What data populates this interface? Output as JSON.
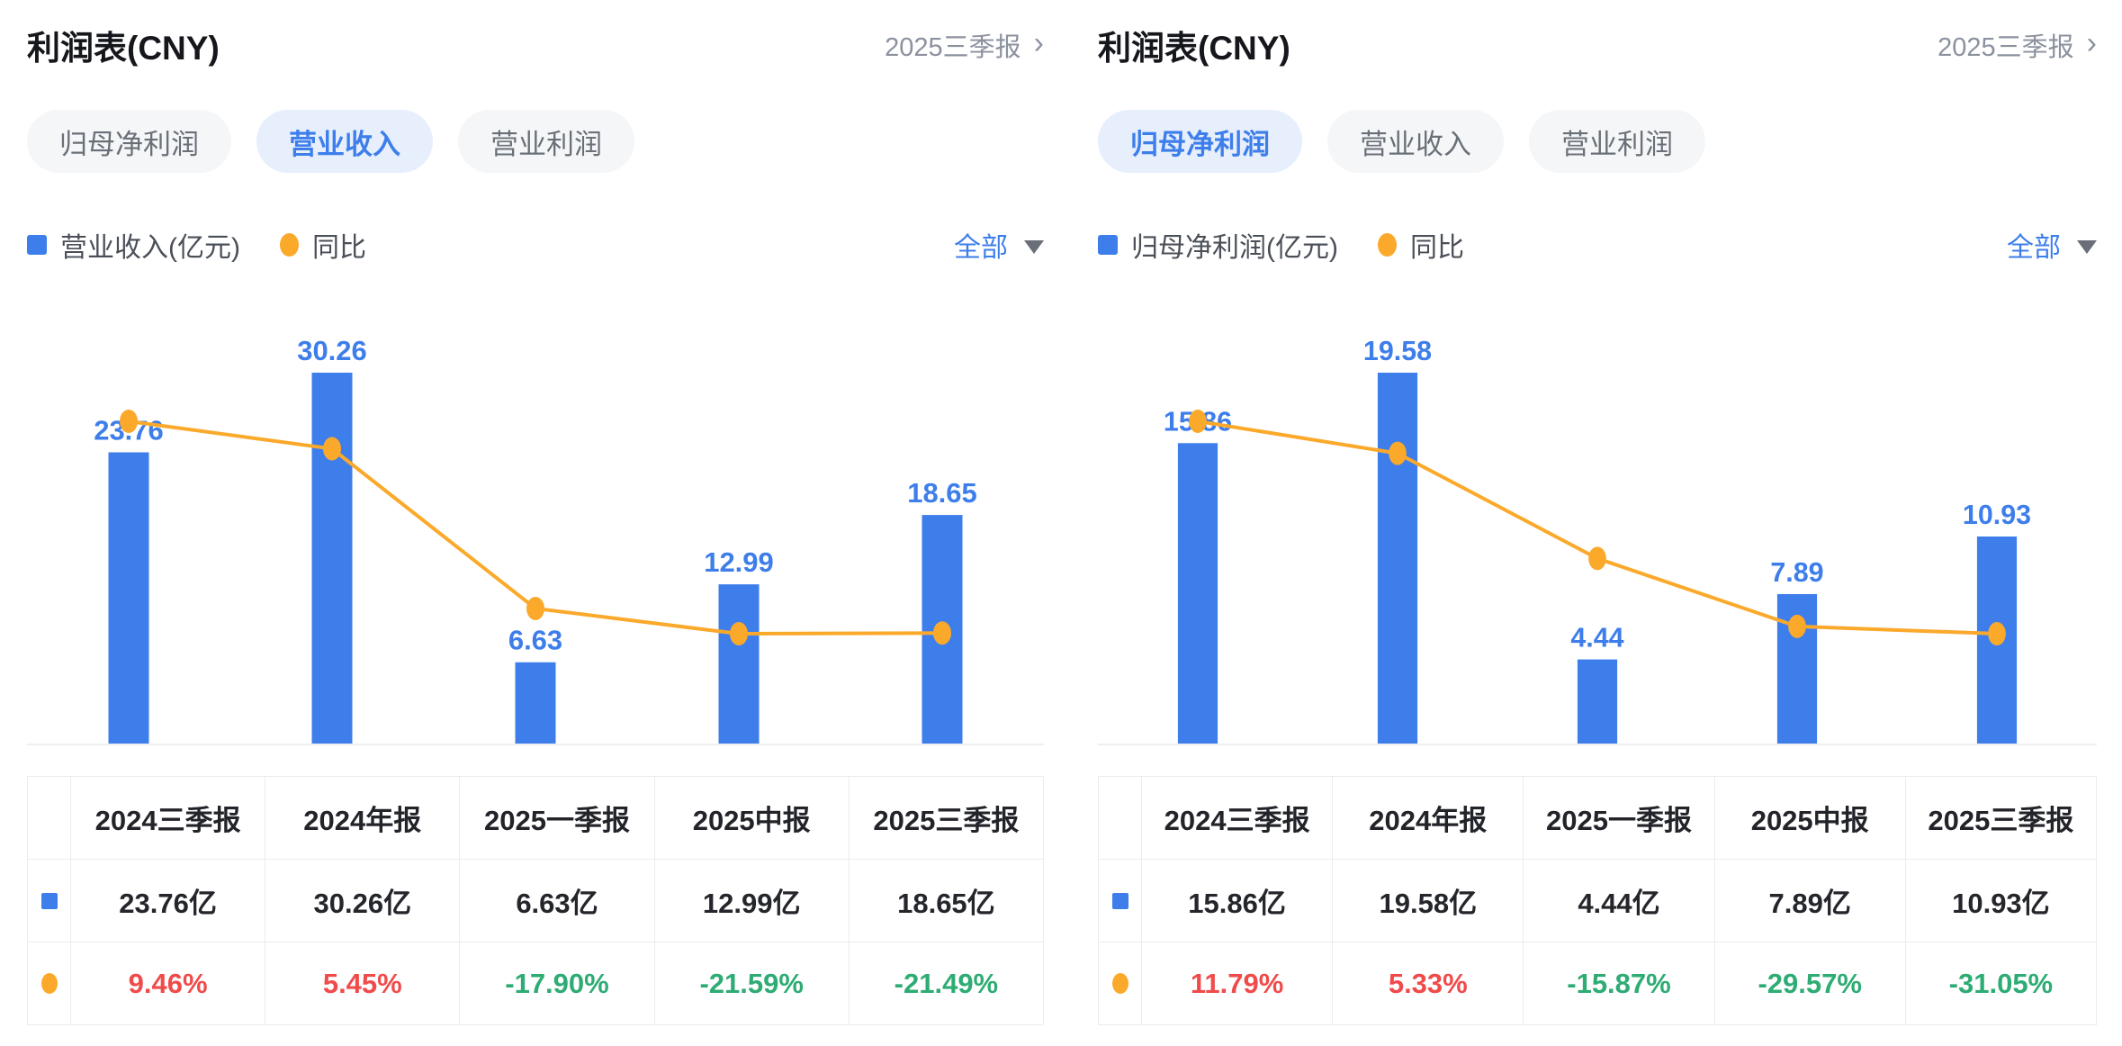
{
  "colors": {
    "bar_blue": "#3d7eeb",
    "line_orange": "#fba92b",
    "positive_red": "#f04b4b",
    "negative_green": "#2eac74",
    "link_blue": "#3d7eeb",
    "muted_gray": "#8b919e",
    "baseline_gray": "#eeeff1"
  },
  "panels": [
    {
      "title": "利润表(CNY)",
      "report_link": {
        "label": "2025三季报",
        "chevron": "›"
      },
      "tabs": [
        {
          "label": "归母净利润",
          "selected": false
        },
        {
          "label": "营业收入",
          "selected": true
        },
        {
          "label": "营业利润",
          "selected": false
        }
      ],
      "legend": {
        "bar_label": "营业收入(亿元)",
        "line_label": "同比"
      },
      "range_dropdown": {
        "label": "全部"
      },
      "table": {
        "headers": [
          "2024三季报",
          "2024年报",
          "2025一季报",
          "2025中报",
          "2025三季报"
        ],
        "rows": [
          {
            "icon": "bar-series-icon",
            "cells": [
              "23.76亿",
              "30.26亿",
              "6.63亿",
              "12.99亿",
              "18.65亿"
            ]
          },
          {
            "icon": "line-series-icon",
            "cells": [
              "9.46%",
              "5.45%",
              "-17.90%",
              "-21.59%",
              "-21.49%"
            ]
          }
        ]
      }
    },
    {
      "title": "利润表(CNY)",
      "report_link": {
        "label": "2025三季报",
        "chevron": "›"
      },
      "tabs": [
        {
          "label": "归母净利润",
          "selected": true
        },
        {
          "label": "营业收入",
          "selected": false
        },
        {
          "label": "营业利润",
          "selected": false
        }
      ],
      "legend": {
        "bar_label": "归母净利润(亿元)",
        "line_label": "同比"
      },
      "range_dropdown": {
        "label": "全部"
      },
      "table": {
        "headers": [
          "2024三季报",
          "2024年报",
          "2025一季报",
          "2025中报",
          "2025三季报"
        ],
        "rows": [
          {
            "icon": "bar-series-icon",
            "cells": [
              "15.86亿",
              "19.58亿",
              "4.44亿",
              "7.89亿",
              "10.93亿"
            ]
          },
          {
            "icon": "line-series-icon",
            "cells": [
              "11.79%",
              "5.33%",
              "-15.87%",
              "-29.57%",
              "-31.05%"
            ]
          }
        ]
      }
    }
  ],
  "chart_data": [
    {
      "type": "bar",
      "title": "利润表(CNY) 营业收入",
      "categories": [
        "2024三季报",
        "2024年报",
        "2025一季报",
        "2025中报",
        "2025三季报"
      ],
      "series": [
        {
          "name": "营业收入(亿元)",
          "type": "bar",
          "values": [
            23.76,
            30.26,
            6.63,
            12.99,
            18.65
          ],
          "labels": [
            "23.76",
            "30.26",
            "6.63",
            "12.99",
            "18.65"
          ],
          "unit": "亿"
        },
        {
          "name": "同比",
          "type": "line",
          "values": [
            9.46,
            5.45,
            -17.9,
            -21.59,
            -21.49
          ],
          "unit": "%"
        }
      ],
      "legend_position": "top-left",
      "grid": false,
      "baseline": true
    },
    {
      "type": "bar",
      "title": "利润表(CNY) 归母净利润",
      "categories": [
        "2024三季报",
        "2024年报",
        "2025一季报",
        "2025中报",
        "2025三季报"
      ],
      "series": [
        {
          "name": "归母净利润(亿元)",
          "type": "bar",
          "values": [
            15.86,
            19.58,
            4.44,
            7.89,
            10.93
          ],
          "labels": [
            "15.86",
            "19.58",
            "4.44",
            "7.89",
            "10.93"
          ],
          "unit": "亿"
        },
        {
          "name": "同比",
          "type": "line",
          "values": [
            11.79,
            5.33,
            -15.87,
            -29.57,
            -31.05
          ],
          "unit": "%"
        }
      ],
      "legend_position": "top-left",
      "grid": false,
      "baseline": true
    }
  ]
}
